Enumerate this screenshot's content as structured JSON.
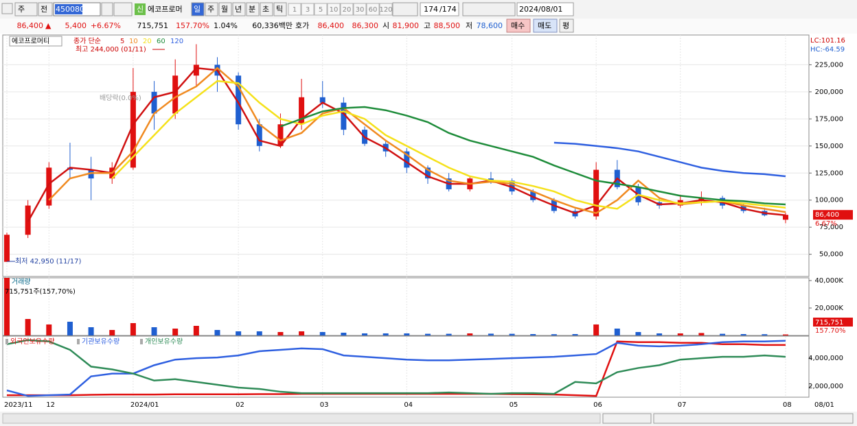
{
  "toolbar": {
    "items": [
      "주",
      "전"
    ],
    "code": "450080",
    "name": "에코프로머",
    "periods": [
      "일",
      "주",
      "월",
      "년",
      "분",
      "초",
      "틱"
    ],
    "intervals": [
      "1",
      "3",
      "5",
      "10",
      "20",
      "30",
      "60",
      "120"
    ],
    "count": "174",
    "total": "/174",
    "date": "2024/08/01",
    "new_badge": "신"
  },
  "info": {
    "price": "86,400",
    "arrow": "▲",
    "change": "5,400",
    "change_pct": "+6.67%",
    "volume": "715,751",
    "volume_ratio": "157.70%",
    "turnover": "1.04%",
    "amount": "60,336백만",
    "bid_label": "호가",
    "ask": "86,400",
    "bid": "86,300",
    "open_label": "시",
    "open": "81,900",
    "high_label": "고",
    "high": "88,500",
    "low_label": "저",
    "low": "78,600",
    "buy": "매수",
    "sell": "매도",
    "eval": "평"
  },
  "chart_data": [
    {
      "type": "candlestick",
      "title": "에코프로머티",
      "legend_prefix": "종가 단순",
      "high_note": "최고 244,000 (01/11)",
      "low_note": "최저 42,950 (11/17)",
      "dividend_note": "배당락(0.0%)",
      "lc": "LC:101.16",
      "hc": "HC:-64.59",
      "last_price_label": "86,400",
      "last_change_label": "6.67%",
      "categories": [
        "2023/11",
        null,
        "12",
        null,
        null,
        null,
        "2024/01",
        null,
        null,
        null,
        null,
        "02",
        null,
        null,
        null,
        "03",
        null,
        null,
        null,
        "04",
        null,
        null,
        null,
        null,
        "05",
        null,
        null,
        null,
        "06",
        null,
        null,
        null,
        "07",
        null,
        null,
        null,
        null,
        "08"
      ],
      "end_label": "08/01",
      "open": [
        43000,
        68000,
        95000,
        130000,
        128000,
        120000,
        130000,
        200000,
        180000,
        215000,
        225000,
        215000,
        170000,
        150000,
        170000,
        195000,
        190000,
        165000,
        152000,
        145000,
        130000,
        120000,
        110000,
        120000,
        118000,
        108000,
        100000,
        90000,
        85000,
        128000,
        112000,
        98000,
        95000,
        100000,
        102000,
        95000,
        90000,
        81900
      ],
      "high": [
        70000,
        100000,
        135000,
        153000,
        140000,
        135000,
        222000,
        210000,
        230000,
        244000,
        232000,
        218000,
        175000,
        180000,
        212000,
        210000,
        195000,
        168000,
        155000,
        148000,
        132000,
        125000,
        122000,
        126000,
        120000,
        110000,
        102000,
        92000,
        135000,
        137000,
        115000,
        102000,
        105000,
        108000,
        104000,
        97000,
        93000,
        88500
      ],
      "low": [
        42950,
        65000,
        92000,
        120000,
        100000,
        115000,
        128000,
        165000,
        175000,
        205000,
        200000,
        165000,
        145000,
        148000,
        165000,
        185000,
        160000,
        150000,
        140000,
        125000,
        115000,
        108000,
        108000,
        115000,
        105000,
        98000,
        88000,
        83000,
        82000,
        110000,
        95000,
        92000,
        93000,
        95000,
        92000,
        88000,
        85000,
        78600
      ],
      "close": [
        68000,
        95000,
        130000,
        128000,
        120000,
        130000,
        200000,
        180000,
        215000,
        225000,
        215000,
        170000,
        150000,
        170000,
        195000,
        190000,
        165000,
        152000,
        145000,
        130000,
        120000,
        110000,
        120000,
        118000,
        108000,
        100000,
        90000,
        85000,
        128000,
        112000,
        98000,
        95000,
        100000,
        102000,
        95000,
        90000,
        86000,
        86400
      ],
      "up_color": "#e01010",
      "down_color": "#1f5fd0",
      "series": [
        {
          "name": "5",
          "color": "#d01010",
          "values": [
            null,
            80000,
            115000,
            130000,
            128000,
            125000,
            170000,
            195000,
            200000,
            222000,
            220000,
            190000,
            155000,
            150000,
            175000,
            190000,
            180000,
            158000,
            148000,
            135000,
            122000,
            115000,
            115000,
            118000,
            112000,
            103000,
            95000,
            88000,
            95000,
            120000,
            105000,
            96000,
            97000,
            100000,
            98000,
            92000,
            88000,
            86000
          ]
        },
        {
          "name": "10",
          "color": "#f08a20",
          "values": [
            null,
            null,
            100000,
            120000,
            125000,
            125000,
            145000,
            180000,
            195000,
            205000,
            222000,
            205000,
            170000,
            155000,
            162000,
            180000,
            185000,
            170000,
            155000,
            142000,
            128000,
            118000,
            115000,
            117000,
            115000,
            108000,
            100000,
            93000,
            88000,
            100000,
            118000,
            102000,
            96000,
            98000,
            99000,
            95000,
            92000,
            89000
          ]
        },
        {
          "name": "20",
          "color": "#f5e11a",
          "values": [
            null,
            null,
            null,
            null,
            null,
            120000,
            140000,
            160000,
            180000,
            195000,
            210000,
            208000,
            190000,
            175000,
            170000,
            178000,
            182000,
            175000,
            160000,
            150000,
            140000,
            130000,
            122000,
            118000,
            117000,
            113000,
            108000,
            100000,
            95000,
            92000,
            105000,
            100000,
            97000,
            98000,
            99000,
            97000,
            95000,
            93000
          ]
        },
        {
          "name": "60",
          "color": "#1e8c3a",
          "values": [
            null,
            null,
            null,
            null,
            null,
            null,
            null,
            null,
            null,
            null,
            null,
            null,
            null,
            168000,
            175000,
            182000,
            185000,
            186000,
            183000,
            178000,
            172000,
            162000,
            155000,
            150000,
            145000,
            140000,
            132000,
            125000,
            118000,
            115000,
            112000,
            108000,
            104000,
            102000,
            100000,
            99000,
            97000,
            96000
          ]
        },
        {
          "name": "120",
          "color": "#2e5fe0",
          "values": [
            null,
            null,
            null,
            null,
            null,
            null,
            null,
            null,
            null,
            null,
            null,
            null,
            null,
            null,
            null,
            null,
            null,
            null,
            null,
            null,
            null,
            null,
            null,
            null,
            null,
            null,
            153000,
            152000,
            150000,
            148000,
            145000,
            140000,
            135000,
            130000,
            127000,
            125000,
            124000,
            122000
          ]
        }
      ],
      "ylim": [
        29500,
        252500
      ],
      "yticks": [
        {
          "value": 50000,
          "label": "50,000"
        },
        {
          "value": 75000,
          "label": "75,000"
        },
        {
          "value": 100000,
          "label": "100,000"
        },
        {
          "value": 125000,
          "label": "125,000"
        },
        {
          "value": 150000,
          "label": "150,000"
        },
        {
          "value": 175000,
          "label": "175,000"
        },
        {
          "value": 200000,
          "label": "200,000"
        },
        {
          "value": 225000,
          "label": "225,000"
        }
      ],
      "grid": true
    },
    {
      "type": "bar",
      "title": "거래량",
      "summary": "715,751주(157,70%)",
      "last_label": "715,751",
      "last_pct": "157.70%",
      "values": [
        42000,
        12000,
        8000,
        10000,
        6000,
        4000,
        9000,
        6000,
        5000,
        7000,
        4000,
        3000,
        3000,
        2500,
        3000,
        2500,
        2000,
        1500,
        1500,
        1500,
        1200,
        1200,
        1500,
        1300,
        1200,
        1000,
        900,
        1000,
        8000,
        5000,
        2500,
        1500,
        1500,
        1800,
        1200,
        1000,
        900,
        715.751
      ],
      "ylim": [
        0,
        42000
      ],
      "yticks": [
        {
          "value": 20000,
          "label": "20,000K"
        },
        {
          "value": 40000,
          "label": "40,000K"
        }
      ]
    },
    {
      "type": "line",
      "series": [
        {
          "name": "외국인보유수량",
          "color": "#e01010",
          "values": [
            1350000,
            1350000,
            1350000,
            1350000,
            1380000,
            1400000,
            1400000,
            1400000,
            1420000,
            1420000,
            1420000,
            1420000,
            1430000,
            1430000,
            1450000,
            1450000,
            1450000,
            1450000,
            1450000,
            1450000,
            1450000,
            1450000,
            1450000,
            1450000,
            1430000,
            1420000,
            1400000,
            1350000,
            1300000,
            5200000,
            5150000,
            5150000,
            5100000,
            5100000,
            5000000,
            5000000,
            4950000,
            4950000
          ]
        },
        {
          "name": "기관보유수량",
          "color": "#2e5fe0",
          "values": [
            1700000,
            1300000,
            1350000,
            1400000,
            2700000,
            2900000,
            2900000,
            3500000,
            3900000,
            4000000,
            4050000,
            4200000,
            4500000,
            4600000,
            4700000,
            4650000,
            4200000,
            4100000,
            4000000,
            3900000,
            3850000,
            3850000,
            3900000,
            3950000,
            4000000,
            4050000,
            4100000,
            4200000,
            4300000,
            5100000,
            4900000,
            4850000,
            4900000,
            5000000,
            5150000,
            5200000,
            5200000,
            5250000
          ]
        },
        {
          "name": "개인보유수량",
          "color": "#2e8b57",
          "values": [
            5000000,
            5300000,
            5200000,
            4600000,
            3400000,
            3200000,
            2900000,
            2400000,
            2500000,
            2300000,
            2100000,
            1900000,
            1800000,
            1600000,
            1500000,
            1500000,
            1500000,
            1500000,
            1500000,
            1500000,
            1500000,
            1550000,
            1500000,
            1450000,
            1500000,
            1500000,
            1450000,
            2300000,
            2200000,
            3000000,
            3300000,
            3500000,
            3900000,
            4000000,
            4100000,
            4100000,
            4200000,
            4100000
          ]
        }
      ],
      "ylim": [
        1210000,
        5580000
      ],
      "yticks": [
        {
          "value": 2000000,
          "label": "2,000,000"
        },
        {
          "value": 4000000,
          "label": "4,000,000"
        }
      ]
    }
  ]
}
